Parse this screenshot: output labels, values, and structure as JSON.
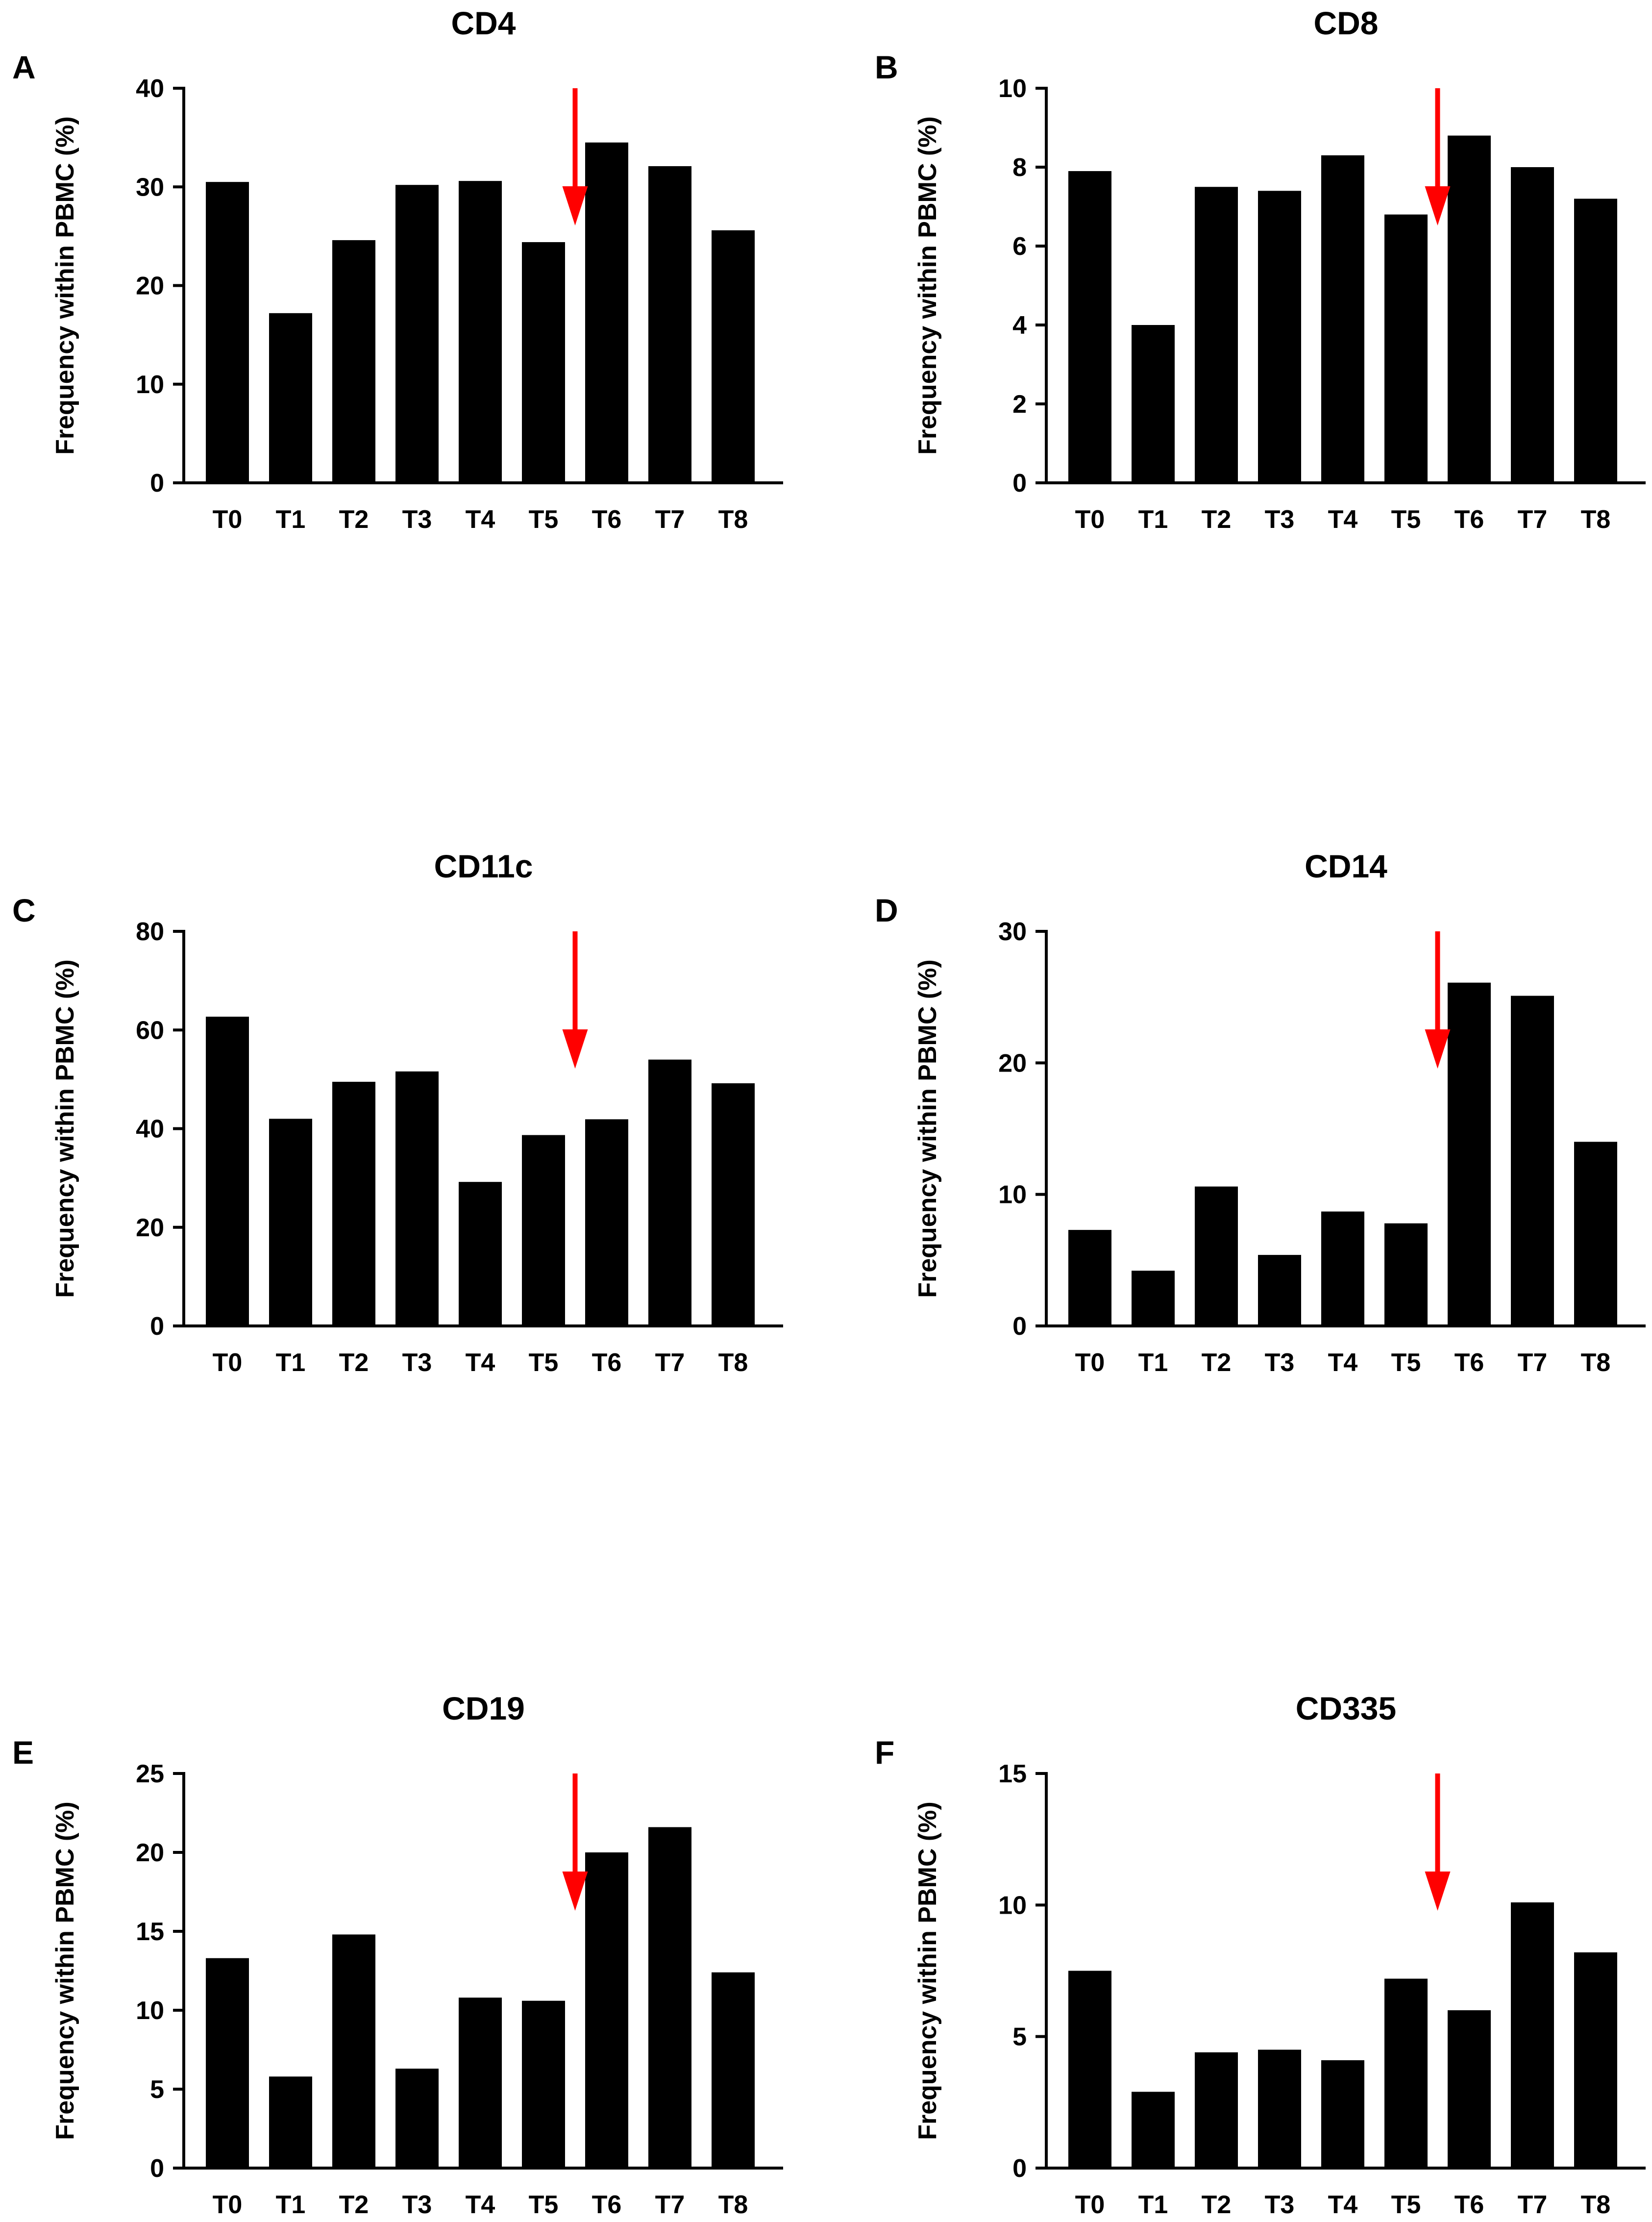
{
  "figure": {
    "description_text": "",
    "bar_color": "#000000",
    "axis_color": "#000000",
    "arrow_color": "#ff0000"
  },
  "chart_data": [
    {
      "type": "bar",
      "panel": "A",
      "title": "CD4",
      "ylabel": "Frequency within PBMC (%)",
      "xlabel": "",
      "categories": [
        "T0",
        "T1",
        "T2",
        "T3",
        "T4",
        "T5",
        "T6",
        "T7",
        "T8"
      ],
      "values": [
        30.5,
        17.2,
        24.6,
        30.2,
        30.6,
        24.4,
        34.5,
        32.1,
        25.6
      ],
      "ylim": [
        0,
        40
      ],
      "yticks": [
        "0",
        "10",
        "20",
        "30",
        "40"
      ],
      "arrow_between": [
        "T5",
        "T6"
      ]
    },
    {
      "type": "bar",
      "panel": "B",
      "title": "CD8",
      "ylabel": "Frequency within PBMC (%)",
      "xlabel": "",
      "categories": [
        "T0",
        "T1",
        "T2",
        "T3",
        "T4",
        "T5",
        "T6",
        "T7",
        "T8"
      ],
      "values": [
        7.9,
        4.0,
        7.5,
        7.4,
        8.3,
        6.8,
        8.8,
        8.0,
        7.2
      ],
      "ylim": [
        0,
        10
      ],
      "yticks": [
        "0",
        "2",
        "4",
        "6",
        "8",
        "10"
      ],
      "arrow_between": [
        "T5",
        "T6"
      ]
    },
    {
      "type": "bar",
      "panel": "C",
      "title": "CD11c",
      "ylabel": "Frequency within PBMC (%)",
      "xlabel": "",
      "categories": [
        "T0",
        "T1",
        "T2",
        "T3",
        "T4",
        "T5",
        "T6",
        "T7",
        "T8"
      ],
      "values": [
        62.7,
        42.0,
        49.5,
        51.6,
        29.2,
        38.7,
        41.9,
        54.0,
        49.2
      ],
      "ylim": [
        0,
        80
      ],
      "yticks": [
        "0",
        "20",
        "40",
        "60",
        "80"
      ],
      "arrow_between": [
        "T5",
        "T6"
      ]
    },
    {
      "type": "bar",
      "panel": "D",
      "title": "CD14",
      "ylabel": "Frequency within PBMC (%)",
      "xlabel": "",
      "categories": [
        "T0",
        "T1",
        "T2",
        "T3",
        "T4",
        "T5",
        "T6",
        "T7",
        "T8"
      ],
      "values": [
        7.3,
        4.2,
        10.6,
        5.4,
        8.7,
        7.8,
        26.1,
        25.1,
        14.0
      ],
      "ylim": [
        0,
        30
      ],
      "yticks": [
        "0",
        "10",
        "20",
        "30"
      ],
      "arrow_between": [
        "T5",
        "T6"
      ]
    },
    {
      "type": "bar",
      "panel": "E",
      "title": "CD19",
      "ylabel": "Frequency within PBMC (%)",
      "xlabel": "",
      "categories": [
        "T0",
        "T1",
        "T2",
        "T3",
        "T4",
        "T5",
        "T6",
        "T7",
        "T8"
      ],
      "values": [
        13.3,
        5.8,
        14.8,
        6.3,
        10.8,
        10.6,
        20.0,
        21.6,
        12.4
      ],
      "ylim": [
        0,
        25
      ],
      "yticks": [
        "0",
        "5",
        "10",
        "15",
        "20",
        "25"
      ],
      "arrow_between": [
        "T5",
        "T6"
      ]
    },
    {
      "type": "bar",
      "panel": "F",
      "title": "CD335",
      "ylabel": "Frequency within PBMC (%)",
      "xlabel": "",
      "categories": [
        "T0",
        "T1",
        "T2",
        "T3",
        "T4",
        "T5",
        "T6",
        "T7",
        "T8"
      ],
      "values": [
        7.5,
        2.9,
        4.4,
        4.5,
        4.1,
        7.2,
        6.0,
        10.1,
        8.2
      ],
      "ylim": [
        0,
        15
      ],
      "yticks": [
        "0",
        "5",
        "10",
        "15"
      ],
      "arrow_between": [
        "T5",
        "T6"
      ]
    }
  ]
}
